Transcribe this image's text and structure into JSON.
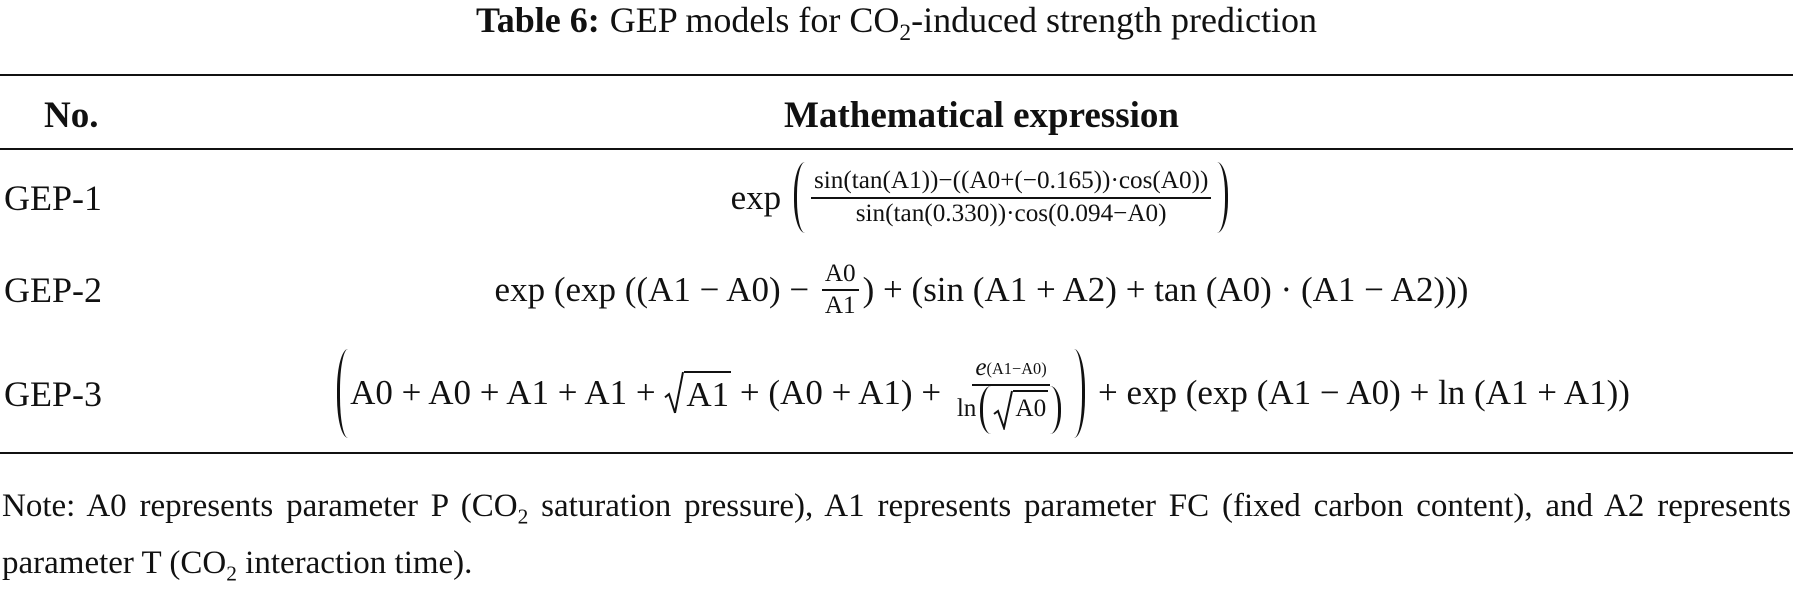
{
  "title": {
    "label": "Table 6:",
    "parts": [
      {
        "text": "GEP models for CO"
      },
      {
        "subscript": "2"
      },
      {
        "text": "-induced strength prediction"
      }
    ]
  },
  "table": {
    "header": [
      "No.",
      "Mathematical expression"
    ],
    "rows": [
      {
        "name": "GEP-1",
        "expression": [
          {
            "text": "exp "
          },
          {
            "delimited": [
              {
                "numerator": [
                  {
                    "text": "sin(tan(A1))−((A0+(−0.165))·cos(A0))"
                  }
                ],
                "denominator": [
                  {
                    "text": "sin(tan(0.330))·cos(0.094−A0)"
                  }
                ]
              }
            ]
          }
        ]
      },
      {
        "name": "GEP-2",
        "expression": [
          {
            "text": "exp (exp ((A1 − A0) − "
          },
          {
            "numerator": [
              {
                "text": "A0"
              }
            ],
            "denominator": [
              {
                "text": "A1"
              }
            ]
          },
          {
            "text": ") + (sin (A1 + A2) + tan (A0) · (A1 − A2)))"
          }
        ]
      },
      {
        "name": "GEP-3",
        "expression": [
          {
            "delimited": [
              {
                "text": "A0 + A0 + A1 + A1 + "
              },
              {
                "radicand": "A1"
              },
              {
                "text": " + (A0 + A1) + "
              },
              {
                "numerator": [
                  {
                    "base": "e",
                    "superscript": "(A1−A0)"
                  }
                ],
                "denominator": [
                  {
                    "text": "ln"
                  },
                  {
                    "delimited": [
                      {
                        "radicand": "A0"
                      }
                    ]
                  }
                ]
              }
            ]
          },
          {
            "text": " + exp (exp (A1 − A0) + ln (A1 + A1))"
          }
        ]
      }
    ]
  },
  "note": {
    "parts": [
      {
        "text": "Note: A0 represents parameter P (CO"
      },
      {
        "subscript": "2"
      },
      {
        "text": " saturation pressure), A1 represents parameter FC (fixed carbon content), and A2 represents parameter T (CO"
      },
      {
        "subscript": "2"
      },
      {
        "text": " interaction time)."
      }
    ]
  }
}
